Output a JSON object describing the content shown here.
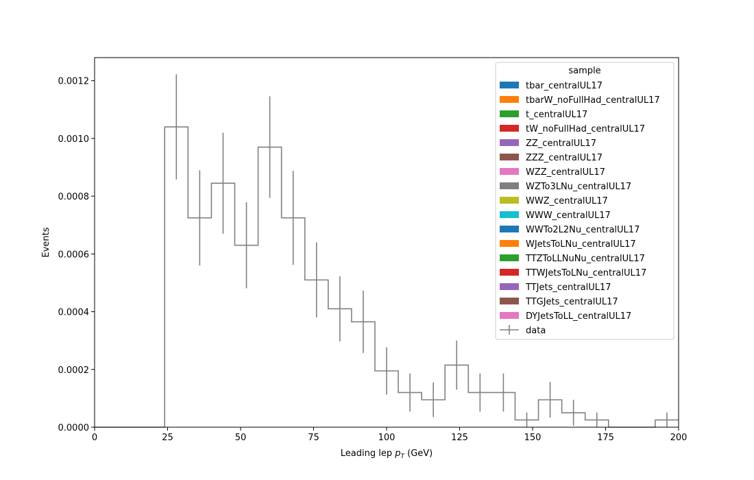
{
  "chart_data": {
    "type": "histogram",
    "xlabel_main": "Leading lep ",
    "xlabel_p": "p",
    "xlabel_sub": "T",
    "xlabel_unit": " (GeV)",
    "ylabel": "Events",
    "xlim": [
      0,
      200
    ],
    "ylim": [
      0,
      0.00128
    ],
    "x_ticks": [
      0,
      25,
      50,
      75,
      100,
      125,
      150,
      175,
      200
    ],
    "x_tick_labels": [
      "0",
      "25",
      "50",
      "75",
      "100",
      "125",
      "150",
      "175",
      "200"
    ],
    "y_ticks": [
      0,
      0.0002,
      0.0004,
      0.0006,
      0.0008,
      0.001,
      0.0012
    ],
    "y_tick_labels": [
      "0.0000",
      "0.0002",
      "0.0004",
      "0.0006",
      "0.0008",
      "0.0010",
      "0.0012"
    ],
    "bin_edges": [
      0,
      8,
      16,
      24,
      32,
      40,
      48,
      56,
      64,
      72,
      80,
      88,
      96,
      104,
      112,
      120,
      128,
      136,
      144,
      152,
      160,
      168,
      176,
      184,
      192,
      200
    ],
    "series": [
      {
        "name": "data",
        "color": "#808080",
        "values": [
          0,
          0,
          0,
          0.00104,
          0.000725,
          0.000845,
          0.00063,
          0.00097,
          0.000725,
          0.00051,
          0.00041,
          0.000365,
          0.000195,
          0.00012,
          9.5e-05,
          0.000215,
          0.00012,
          0.00012,
          2.5e-05,
          9.5e-05,
          5e-05,
          2.5e-05,
          0,
          0,
          2.5e-05
        ],
        "errors": [
          0,
          0,
          0,
          0.000182,
          0.000165,
          0.000175,
          0.000149,
          0.000176,
          0.000163,
          0.00013,
          0.000113,
          0.000108,
          8.2e-05,
          6.6e-05,
          6e-05,
          8.5e-05,
          6.6e-05,
          6.6e-05,
          2.6e-05,
          6.2e-05,
          4.5e-05,
          2.6e-05,
          0,
          0,
          2.6e-05
        ]
      }
    ],
    "legend": {
      "title": "sample",
      "placement": "top-right",
      "entries": [
        {
          "label": "tbar_centralUL17",
          "color": "#1f77b4",
          "kind": "patch"
        },
        {
          "label": "tbarW_noFullHad_centralUL17",
          "color": "#ff7f0e",
          "kind": "patch"
        },
        {
          "label": "t_centralUL17",
          "color": "#2ca02c",
          "kind": "patch"
        },
        {
          "label": "tW_noFullHad_centralUL17",
          "color": "#d62728",
          "kind": "patch"
        },
        {
          "label": "ZZ_centralUL17",
          "color": "#9467bd",
          "kind": "patch"
        },
        {
          "label": "ZZZ_centralUL17",
          "color": "#8c564b",
          "kind": "patch"
        },
        {
          "label": "WZZ_centralUL17",
          "color": "#e377c2",
          "kind": "patch"
        },
        {
          "label": "WZTo3LNu_centralUL17",
          "color": "#7f7f7f",
          "kind": "patch"
        },
        {
          "label": "WWZ_centralUL17",
          "color": "#bcbd22",
          "kind": "patch"
        },
        {
          "label": "WWW_centralUL17",
          "color": "#17becf",
          "kind": "patch"
        },
        {
          "label": "WWTo2L2Nu_centralUL17",
          "color": "#1f77b4",
          "kind": "patch"
        },
        {
          "label": "WJetsToLNu_centralUL17",
          "color": "#ff7f0e",
          "kind": "patch"
        },
        {
          "label": "TTZToLLNuNu_centralUL17",
          "color": "#2ca02c",
          "kind": "patch"
        },
        {
          "label": "TTWJetsToLNu_centralUL17",
          "color": "#d62728",
          "kind": "patch"
        },
        {
          "label": "TTJets_centralUL17",
          "color": "#9467bd",
          "kind": "patch"
        },
        {
          "label": "TTGJets_centralUL17",
          "color": "#8c564b",
          "kind": "patch"
        },
        {
          "label": "DYJetsToLL_centralUL17",
          "color": "#e377c2",
          "kind": "patch"
        },
        {
          "label": "data",
          "color": "#808080",
          "kind": "errorbar"
        }
      ]
    }
  }
}
